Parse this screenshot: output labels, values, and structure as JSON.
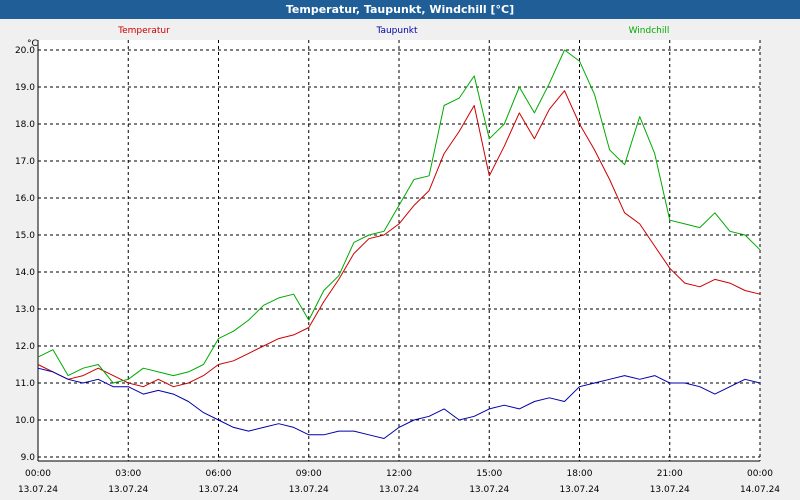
{
  "window": {
    "title": "Temperatur, Taupunkt, Windchill [°C]"
  },
  "colors": {
    "titlebar": "#1f5e97",
    "background": "#f0f0f0",
    "temperatur": "#cc0000",
    "taupunkt": "#0000aa",
    "windchill": "#00aa00",
    "grid": "#000000"
  },
  "chart_data": {
    "type": "line",
    "title": "Temperatur, Taupunkt, Windchill [°C]",
    "ylabel": "°C",
    "xlabel": "",
    "ylim": [
      9.0,
      20.5
    ],
    "yticks": [
      "9.0",
      "10.0",
      "11.0",
      "12.0",
      "13.0",
      "14.0",
      "15.0",
      "16.0",
      "17.0",
      "18.0",
      "19.0",
      "20.0"
    ],
    "xlim": [
      0,
      24
    ],
    "xticks": [
      {
        "time": "00:00",
        "date": "13.07.24"
      },
      {
        "time": "03:00",
        "date": "13.07.24"
      },
      {
        "time": "06:00",
        "date": "13.07.24"
      },
      {
        "time": "09:00",
        "date": "13.07.24"
      },
      {
        "time": "12:00",
        "date": "13.07.24"
      },
      {
        "time": "15:00",
        "date": "13.07.24"
      },
      {
        "time": "18:00",
        "date": "13.07.24"
      },
      {
        "time": "21:00",
        "date": "13.07.24"
      },
      {
        "time": "00:00",
        "date": "14.07.24"
      }
    ],
    "grid": true,
    "legend": "top",
    "x_hours": [
      0,
      0.5,
      1,
      1.5,
      2,
      2.5,
      3,
      3.5,
      4,
      4.5,
      5,
      5.5,
      6,
      6.5,
      7,
      7.5,
      8,
      8.5,
      9,
      9.5,
      10,
      10.5,
      11,
      11.5,
      12,
      12.5,
      13,
      13.5,
      14,
      14.5,
      15,
      15.5,
      16,
      16.5,
      17,
      17.5,
      18,
      18.5,
      19,
      19.5,
      20,
      20.5,
      21,
      21.5,
      22,
      22.5,
      23,
      23.5,
      24
    ],
    "series": [
      {
        "name": "Temperatur",
        "color": "#cc0000",
        "values": [
          11.5,
          11.3,
          11.1,
          11.2,
          11.4,
          11.2,
          11.0,
          10.9,
          11.1,
          10.9,
          11.0,
          11.2,
          11.5,
          11.6,
          11.8,
          12.0,
          12.2,
          12.3,
          12.5,
          13.2,
          13.8,
          14.5,
          14.9,
          15.0,
          15.3,
          15.8,
          16.2,
          17.2,
          17.8,
          18.5,
          16.6,
          17.4,
          18.3,
          17.6,
          18.4,
          18.9,
          18.0,
          17.3,
          16.5,
          15.6,
          15.3,
          14.7,
          14.1,
          13.7,
          13.6,
          13.8,
          13.7,
          13.5,
          13.4
        ]
      },
      {
        "name": "Taupunkt",
        "color": "#0000aa",
        "values": [
          11.4,
          11.3,
          11.1,
          11.0,
          11.1,
          10.9,
          10.9,
          10.7,
          10.8,
          10.7,
          10.5,
          10.2,
          10.0,
          9.8,
          9.7,
          9.8,
          9.9,
          9.8,
          9.6,
          9.6,
          9.7,
          9.7,
          9.6,
          9.5,
          9.8,
          10.0,
          10.1,
          10.3,
          10.0,
          10.1,
          10.3,
          10.4,
          10.3,
          10.5,
          10.6,
          10.5,
          10.9,
          11.0,
          11.1,
          11.2,
          11.1,
          11.2,
          11.0,
          11.0,
          10.9,
          10.7,
          10.9,
          11.1,
          11.0
        ]
      },
      {
        "name": "Windchill",
        "color": "#00aa00",
        "values": [
          11.7,
          11.9,
          11.2,
          11.4,
          11.5,
          11.0,
          11.1,
          11.4,
          11.3,
          11.2,
          11.3,
          11.5,
          12.2,
          12.4,
          12.7,
          13.1,
          13.3,
          13.4,
          12.7,
          13.5,
          13.9,
          14.8,
          15.0,
          15.1,
          15.8,
          16.5,
          16.6,
          18.5,
          18.7,
          19.3,
          17.6,
          18.0,
          19.0,
          18.3,
          19.1,
          20.0,
          19.7,
          18.8,
          17.3,
          16.9,
          18.2,
          17.2,
          15.4,
          15.3,
          15.2,
          15.6,
          15.1,
          15.0,
          14.6
        ]
      }
    ]
  }
}
